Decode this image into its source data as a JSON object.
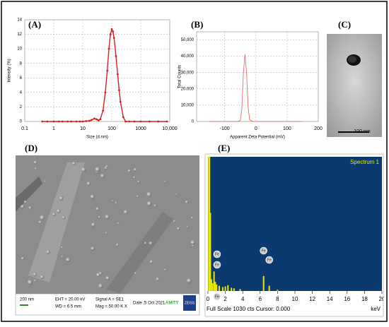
{
  "chart_data": [
    {
      "type": "line",
      "title": "(A)",
      "x_label": "Size (d.nm)",
      "y_label": "Intensity (%)",
      "log_x": true,
      "grid": true,
      "xlim": [
        0.1,
        10000
      ],
      "ylim": [
        0,
        14
      ],
      "xticks": [
        0.1,
        1,
        10,
        100,
        1000,
        {
          "value": 10000,
          "label": "10,000"
        }
      ],
      "yticks": [
        0,
        2,
        4,
        6,
        8,
        10,
        12,
        14
      ],
      "markers": true,
      "series": [
        {
          "color": "#d42020",
          "x": [
            0.4,
            0.6,
            1,
            1.5,
            2,
            3,
            4,
            6,
            8,
            10,
            13,
            17,
            20,
            25,
            30,
            35,
            40,
            50,
            60,
            70,
            80,
            90,
            100,
            110,
            120,
            140,
            160,
            180,
            200,
            250,
            300,
            400,
            600,
            1000,
            2000,
            4000,
            8000
          ],
          "values": [
            0,
            0,
            0,
            0,
            0,
            0,
            0,
            0,
            0,
            0,
            0.05,
            0.1,
            0.2,
            0.4,
            0.3,
            0.15,
            0.3,
            1.5,
            4,
            7,
            10,
            12,
            12.7,
            12.4,
            11.5,
            9,
            6.5,
            4.3,
            2.7,
            0.6,
            0,
            0,
            0,
            0,
            0,
            0,
            0
          ]
        }
      ]
    },
    {
      "type": "line",
      "title": "(B)",
      "x_label": "Apparent Zeta Potential (mV)",
      "y_label": "Total Counts",
      "log_x": false,
      "grid": true,
      "xlim": [
        -190,
        200
      ],
      "ylim": [
        0,
        55000
      ],
      "xticks": [
        -100,
        0,
        100,
        200
      ],
      "yticks": [
        0,
        {
          "value": 10000,
          "label": "10,000"
        },
        {
          "value": 20000,
          "label": "20,000"
        },
        {
          "value": 30000,
          "label": "30,000"
        },
        {
          "value": 40000,
          "label": "40,000"
        },
        {
          "value": 50000,
          "label": "50,000"
        }
      ],
      "markers": false,
      "series": [
        {
          "color": "#e06060",
          "x": [
            -150,
            -100,
            -60,
            -50,
            -45,
            -40,
            -35,
            -30,
            -25,
            -20,
            -10,
            0,
            50,
            100,
            150
          ],
          "values": [
            0,
            0,
            0,
            500,
            8000,
            30000,
            41000,
            30000,
            9000,
            1000,
            0,
            0,
            0,
            0,
            0
          ]
        }
      ]
    },
    {
      "type": "bar",
      "title": "(E)",
      "x_label": "keV",
      "annotation": "Full Scale 1030 cts Cursor: 0.000",
      "xlim": [
        0,
        20
      ],
      "ylim": [
        0,
        1030
      ],
      "xticks": [
        0,
        2,
        4,
        6,
        8,
        10,
        12,
        14,
        16,
        18,
        20
      ],
      "peak_labels": [
        "Fe",
        "Fe",
        "Fe",
        "Fe",
        "Fe"
      ],
      "series": [
        {
          "name": "Spectrum 1",
          "color": "#e8e800",
          "x": [
            0.1,
            0.18,
            0.28,
            0.4,
            0.52,
            0.7,
            0.85,
            1.0,
            1.3,
            1.7,
            2.0,
            2.3,
            2.7,
            3.0,
            3.7,
            6.4,
            7.05,
            8.0
          ],
          "values": [
            1030,
            1030,
            600,
            90,
            60,
            150,
            70,
            50,
            40,
            30,
            35,
            45,
            25,
            20,
            15,
            115,
            40,
            10
          ]
        }
      ]
    }
  ],
  "tem": {
    "label": "(C)",
    "scale_bar": "100 nm"
  },
  "sem": {
    "label": "(D)",
    "scale": "200 nm",
    "eht": "EHT = 20.00 kV",
    "wd": "WD = 6.5 mm",
    "signal": "Signal A = SE1",
    "mag": "Mag = 50.00 K X",
    "date": "Date :5 Oct 2021",
    "org": "AMITY",
    "brand": "ZEISS"
  }
}
